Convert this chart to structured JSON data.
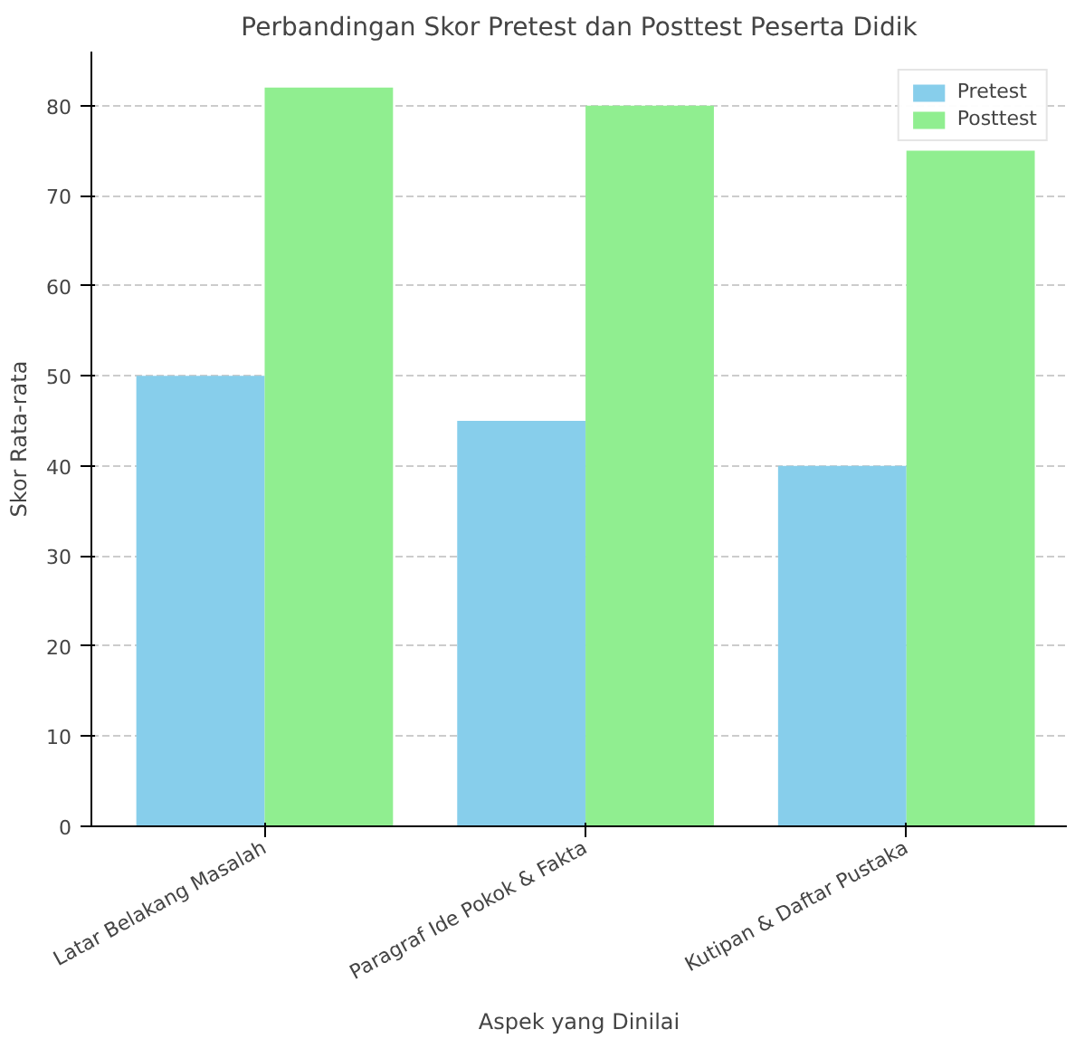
{
  "chart_data": {
    "type": "bar",
    "title": "Perbandingan Skor Pretest dan Posttest Peserta Didik",
    "xlabel": "Aspek yang Dinilai",
    "ylabel": "Skor Rata-rata",
    "categories": [
      "Latar Belakang Masalah",
      "Paragraf Ide Pokok & Fakta",
      "Kutipan & Daftar Pustaka"
    ],
    "series": [
      {
        "name": "Pretest",
        "color": "#87ceeb",
        "values": [
          50,
          45,
          40
        ]
      },
      {
        "name": "Posttest",
        "color": "#90ee90",
        "values": [
          82,
          80,
          75
        ]
      }
    ],
    "ylim": [
      0,
      86
    ],
    "yticks": [
      0,
      10,
      20,
      30,
      40,
      50,
      60,
      70,
      80
    ],
    "grid": "y",
    "legend": "top right"
  }
}
